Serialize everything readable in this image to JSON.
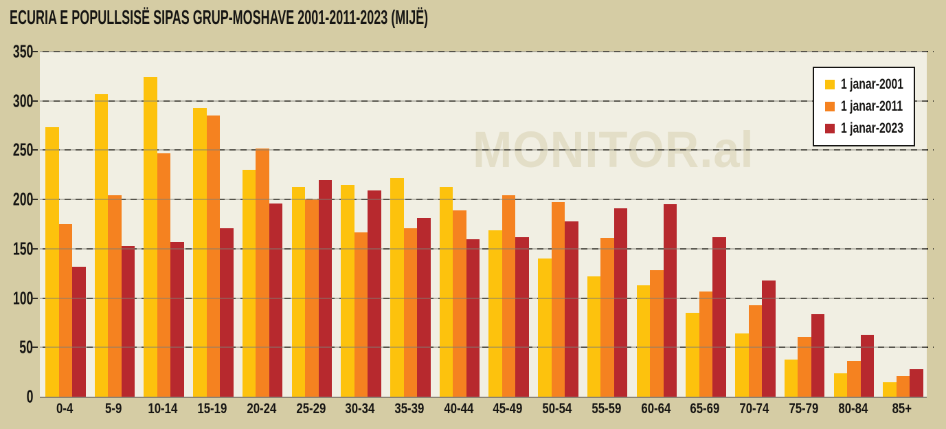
{
  "title": "ECURIA E POPULLSISË SIPAS GRUP-MOSHAVE 2001-2011-2023 (MIJË)",
  "watermark": "MONITOR.al",
  "colors": {
    "page_background": "#d5cca4",
    "plot_background": "#f1efe3",
    "watermark": "#e3dec7",
    "series_2001": "#fdc20d",
    "series_2011": "#f58220",
    "series_2023": "#b7292e",
    "gridline": "#2e2c26",
    "axis_line": "#8a8374",
    "text": "#161513",
    "legend_background": "#ffffff"
  },
  "chart_data": {
    "type": "bar",
    "title": "ECURIA E POPULLSISË SIPAS GRUP-MOSHAVE 2001-2011-2023 (MIJË)",
    "xlabel": "",
    "ylabel": "",
    "ylim": [
      0,
      350
    ],
    "yticks": [
      0,
      50,
      100,
      150,
      200,
      250,
      300,
      350
    ],
    "grid": "horizontal-dashed",
    "legend_position": "top-right",
    "categories": [
      "0-4",
      "5-9",
      "10-14",
      "15-19",
      "20-24",
      "25-29",
      "30-34",
      "35-39",
      "40-44",
      "45-49",
      "50-54",
      "55-59",
      "60-64",
      "65-69",
      "70-74",
      "75-79",
      "80-84",
      "85+"
    ],
    "series": [
      {
        "key": "2001",
        "name": "1 janar-2001",
        "color": "#fdc20d",
        "values": [
          273,
          307,
          324,
          293,
          230,
          213,
          215,
          222,
          213,
          169,
          140,
          122,
          113,
          85,
          64,
          38,
          24,
          15
        ]
      },
      {
        "key": "2011",
        "name": "1 janar-2011",
        "color": "#f58220",
        "values": [
          175,
          204,
          247,
          285,
          252,
          200,
          167,
          171,
          189,
          204,
          197,
          161,
          128,
          107,
          93,
          61,
          36,
          21
        ]
      },
      {
        "key": "2023",
        "name": "1 janar-2023",
        "color": "#b7292e",
        "values": [
          132,
          153,
          157,
          171,
          196,
          220,
          209,
          181,
          160,
          162,
          178,
          191,
          195,
          162,
          118,
          84,
          63,
          28
        ]
      }
    ]
  }
}
